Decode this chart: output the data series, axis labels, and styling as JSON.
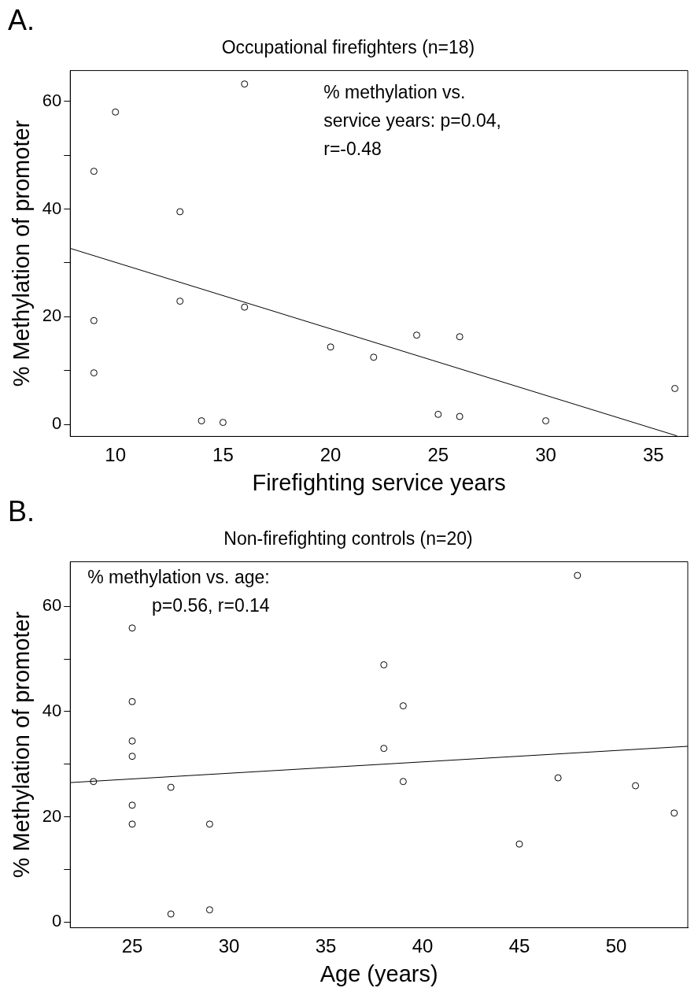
{
  "chart_data": [
    {
      "type": "scatter",
      "title": "Occupational firefighters (n=18)",
      "xlabel": "Firefighting service years",
      "ylabel": "% Methylation of promoter",
      "annotations": [
        "A.",
        "% methylation vs.\nservice years: p=0.04,\nr=-0.48"
      ],
      "xlim": [
        7.9,
        36.6
      ],
      "xticks": [
        10,
        15,
        20,
        25,
        30,
        35
      ],
      "ylim": [
        -2.2,
        65.7
      ],
      "yticks": [
        0,
        {
          "value": 10,
          "label": null
        },
        20,
        {
          "value": 30,
          "label": null
        },
        40,
        {
          "value": 50,
          "label": null
        },
        60
      ],
      "grid": false,
      "legend": false,
      "series": [
        {
          "type": "scatter",
          "marker": "circle",
          "color": "#000000",
          "x": [
            9,
            10,
            9,
            9,
            13,
            13,
            14,
            15,
            16,
            16,
            20,
            22,
            24,
            26,
            25,
            26,
            30,
            36
          ],
          "values": [
            47,
            58,
            19.3,
            9.6,
            39.5,
            22.9,
            0.7,
            0.4,
            63.2,
            21.8,
            14.4,
            12.5,
            16.6,
            16.3,
            1.9,
            1.5,
            0.7,
            6.7
          ]
        },
        {
          "type": "line",
          "marker": "none",
          "color": "#000000",
          "x": [
            7.9,
            36.1
          ],
          "values": [
            32.7,
            -2.1
          ]
        }
      ]
    },
    {
      "type": "scatter",
      "title": "Non-firefighting controls (n=20)",
      "xlabel": "Age (years)",
      "ylabel": "% Methylation of promoter",
      "annotations": [
        "B.",
        "% methylation vs. age:\np=0.56, r=0.14"
      ],
      "xlim": [
        21.8,
        53.7
      ],
      "xticks": [
        25,
        30,
        35,
        40,
        45,
        50
      ],
      "ylim": [
        -1.1,
        68.5
      ],
      "yticks": [
        0,
        {
          "value": 10,
          "label": null
        },
        20,
        {
          "value": 30,
          "label": null
        },
        40,
        {
          "value": 50,
          "label": null
        },
        60
      ],
      "grid": false,
      "legend": false,
      "series": [
        {
          "type": "scatter",
          "marker": "circle",
          "color": "#000000",
          "x": [
            23,
            25,
            25,
            25,
            25,
            25,
            25,
            27,
            27,
            29,
            29,
            38,
            38,
            39,
            39,
            45,
            47,
            48,
            51,
            53
          ],
          "values": [
            26.7,
            55.9,
            41.9,
            34.4,
            31.5,
            22.2,
            18.6,
            25.6,
            1.5,
            18.6,
            2.3,
            48.9,
            33.0,
            41.1,
            26.7,
            14.8,
            27.4,
            65.9,
            25.9,
            20.7
          ]
        },
        {
          "type": "line",
          "marker": "none",
          "color": "#000000",
          "x": [
            21.8,
            53.7
          ],
          "values": [
            26.5,
            33.4
          ]
        }
      ]
    }
  ]
}
